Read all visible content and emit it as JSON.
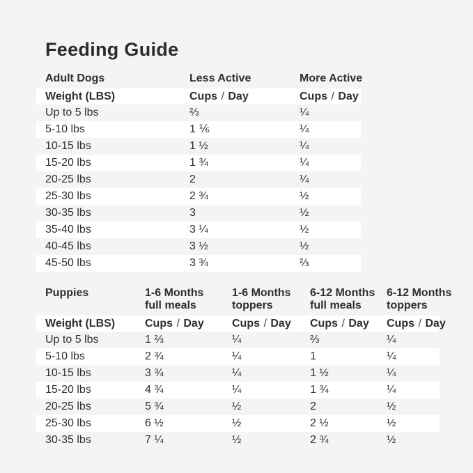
{
  "title": "Feeding Guide",
  "colors": {
    "background": "#f4f4f4",
    "row_stripe": "#ffffff",
    "accent_green": "#2aa053",
    "text_dark": "#2f2f2f"
  },
  "units": {
    "cups": "Cups",
    "slash": "/",
    "day": "Day"
  },
  "adult": {
    "section_label": "Adult Dogs",
    "column_headers": [
      "Less Active",
      "More Active"
    ],
    "weight_header": "Weight (LBS)",
    "rows": [
      {
        "weight": "Up to 5 lbs",
        "less_active": "⅔",
        "more_active": "¼"
      },
      {
        "weight": "5-10 lbs",
        "less_active": "1 ⅙",
        "more_active": "¼"
      },
      {
        "weight": "10-15 lbs",
        "less_active": "1 ½",
        "more_active": "¼"
      },
      {
        "weight": "15-20 lbs",
        "less_active": "1 ¾",
        "more_active": "¼"
      },
      {
        "weight": "20-25 lbs",
        "less_active": "2",
        "more_active": "¼"
      },
      {
        "weight": "25-30 lbs",
        "less_active": "2 ¾",
        "more_active": "½"
      },
      {
        "weight": "30-35 lbs",
        "less_active": "3",
        "more_active": "½"
      },
      {
        "weight": "35-40 lbs",
        "less_active": "3 ¼",
        "more_active": "½"
      },
      {
        "weight": "40-45 lbs",
        "less_active": "3 ½",
        "more_active": "½"
      },
      {
        "weight": "45-50 lbs",
        "less_active": "3 ¾",
        "more_active": "⅔"
      }
    ]
  },
  "puppies": {
    "section_label": "Puppies",
    "column_headers": [
      {
        "line1": "1-6 Months",
        "line2": "full meals"
      },
      {
        "line1": "1-6 Months",
        "line2": "toppers"
      },
      {
        "line1": "6-12 Months",
        "line2": "full meals"
      },
      {
        "line1": "6-12 Months",
        "line2": "toppers"
      }
    ],
    "weight_header": "Weight (LBS)",
    "rows": [
      {
        "weight": "Up to 5 lbs",
        "m16_full": "1 ⅔",
        "m16_toppers": "¼",
        "m612_full": "⅔",
        "m612_toppers": "¼"
      },
      {
        "weight": "5-10 lbs",
        "m16_full": "2 ¾",
        "m16_toppers": "¼",
        "m612_full": "1",
        "m612_toppers": "¼"
      },
      {
        "weight": "10-15 lbs",
        "m16_full": "3 ¾",
        "m16_toppers": "¼",
        "m612_full": "1 ½",
        "m612_toppers": "¼"
      },
      {
        "weight": "15-20 lbs",
        "m16_full": "4 ¾",
        "m16_toppers": "¼",
        "m612_full": "1 ¾",
        "m612_toppers": "¼"
      },
      {
        "weight": "20-25 lbs",
        "m16_full": "5 ¾",
        "m16_toppers": "½",
        "m612_full": "2",
        "m612_toppers": "½"
      },
      {
        "weight": "25-30 lbs",
        "m16_full": "6 ½",
        "m16_toppers": "½",
        "m612_full": "2 ½",
        "m612_toppers": "½"
      },
      {
        "weight": "30-35 lbs",
        "m16_full": "7 ¼",
        "m16_toppers": "½",
        "m612_full": "2 ¾",
        "m612_toppers": "½"
      }
    ]
  }
}
